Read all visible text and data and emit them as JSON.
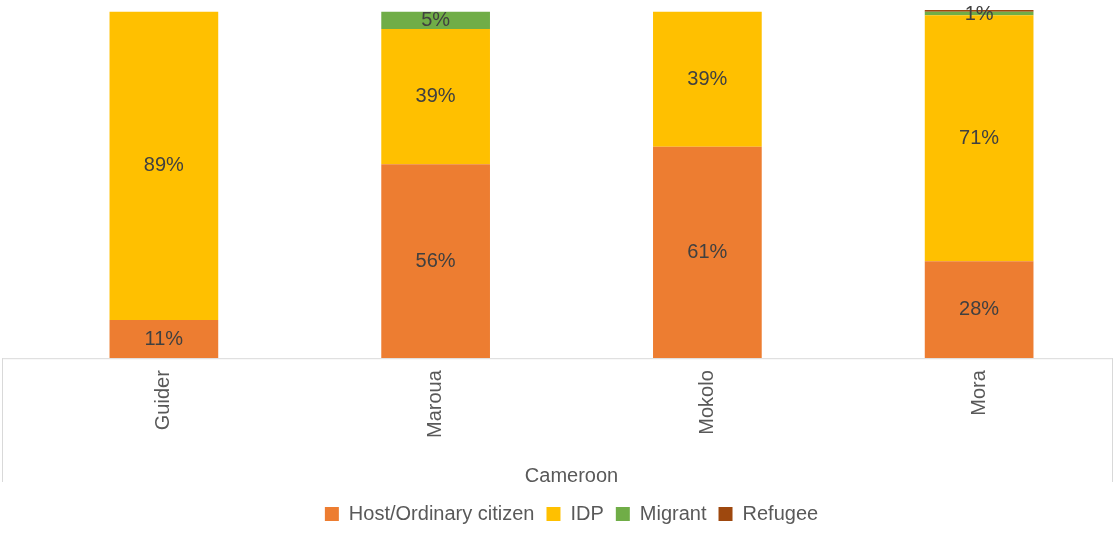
{
  "chart_data": {
    "type": "bar",
    "stacked": true,
    "xlabel": "Cameroon",
    "categories": [
      "Guider",
      "Maroua",
      "Mokolo",
      "Mora"
    ],
    "series": [
      {
        "name": "Host/Ordinary citizen",
        "color": "#ed7d31",
        "values": [
          11,
          56,
          61,
          28
        ],
        "value_labels": [
          "11%",
          "56%",
          "61%",
          "28%"
        ]
      },
      {
        "name": "IDP",
        "color": "#ffc000",
        "values": [
          89,
          39,
          39,
          71
        ],
        "value_labels": [
          "89%",
          "39%",
          "39%",
          "71%"
        ]
      },
      {
        "name": "Migrant",
        "color": "#70ad47",
        "values": [
          null,
          5,
          null,
          1
        ],
        "value_labels": [
          null,
          "5%",
          null,
          "1%"
        ]
      },
      {
        "name": "Refugee",
        "color": "#9e480e",
        "values": [
          null,
          null,
          null,
          0.5
        ],
        "value_labels": [
          null,
          null,
          null,
          null
        ]
      }
    ],
    "legend": "bottom",
    "grid": false
  }
}
